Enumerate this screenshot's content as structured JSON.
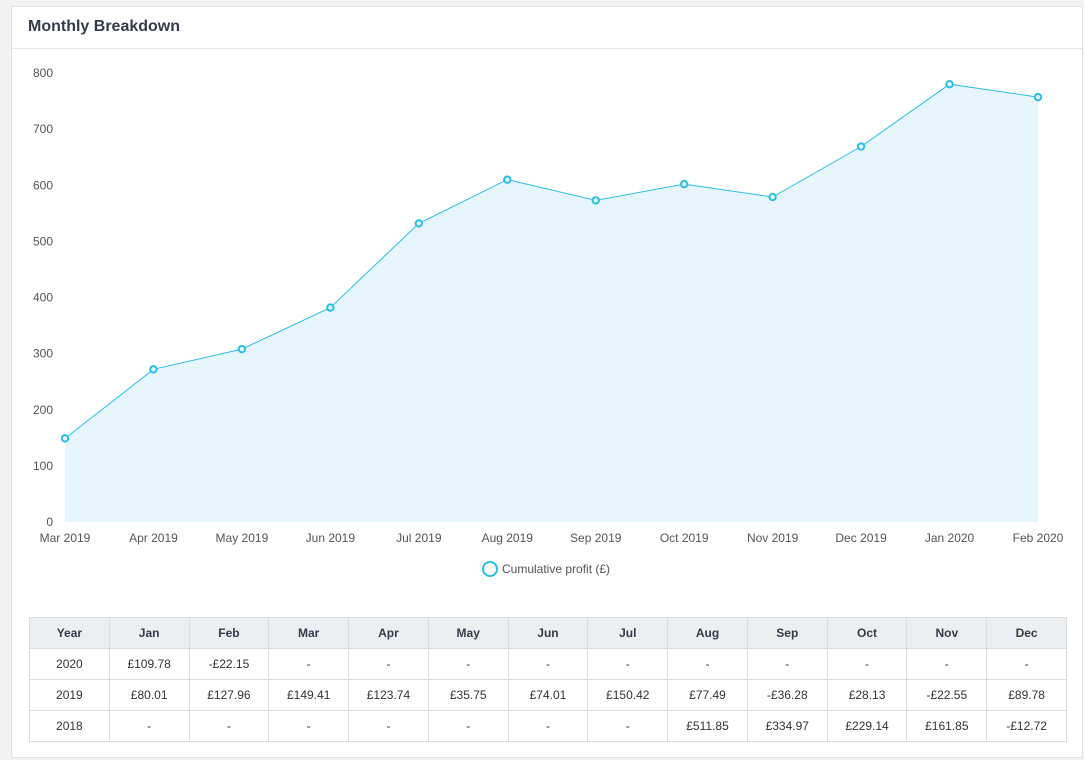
{
  "panel": {
    "title": "Monthly Breakdown"
  },
  "colors": {
    "line": "#2bbfe3",
    "fill": "#e6f6fc",
    "grid": "#ffffff"
  },
  "chart_data": {
    "type": "area",
    "categories": [
      "Mar 2019",
      "Apr 2019",
      "May 2019",
      "Jun 2019",
      "Jul 2019",
      "Aug 2019",
      "Sep 2019",
      "Oct 2019",
      "Nov 2019",
      "Dec 2019",
      "Jan 2020",
      "Feb 2020"
    ],
    "series": [
      {
        "name": "Cumulative profit (£)",
        "values": [
          149,
          272,
          308,
          382,
          532,
          610,
          573,
          602,
          579,
          669,
          780,
          757
        ]
      }
    ],
    "yticks": [
      "0",
      "100",
      "200",
      "300",
      "400",
      "500",
      "600",
      "700",
      "800"
    ],
    "ylim": [
      0,
      800
    ],
    "legend_position": "bottom-center",
    "grid": false
  },
  "table": {
    "headers": [
      "Year",
      "Jan",
      "Feb",
      "Mar",
      "Apr",
      "May",
      "Jun",
      "Jul",
      "Aug",
      "Sep",
      "Oct",
      "Nov",
      "Dec"
    ],
    "rows": [
      [
        "2020",
        "£109.78",
        "-£22.15",
        "-",
        "-",
        "-",
        "-",
        "-",
        "-",
        "-",
        "-",
        "-",
        "-"
      ],
      [
        "2019",
        "£80.01",
        "£127.96",
        "£149.41",
        "£123.74",
        "£35.75",
        "£74.01",
        "£150.42",
        "£77.49",
        "-£36.28",
        "£28.13",
        "-£22.55",
        "£89.78"
      ],
      [
        "2018",
        "-",
        "-",
        "-",
        "-",
        "-",
        "-",
        "-",
        "£511.85",
        "£334.97",
        "£229.14",
        "£161.85",
        "-£12.72"
      ]
    ]
  }
}
